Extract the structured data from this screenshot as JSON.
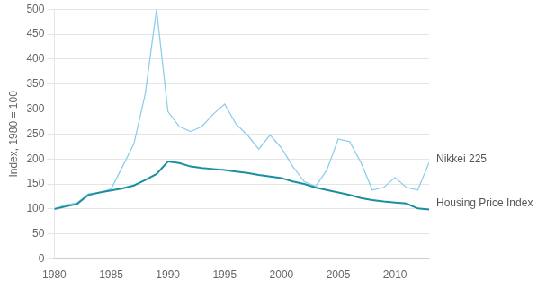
{
  "chart_data": {
    "type": "line",
    "y_label": "Index, 1980 = 100",
    "x": [
      1980,
      1981,
      1982,
      1983,
      1984,
      1985,
      1986,
      1987,
      1988,
      1989,
      1990,
      1991,
      1992,
      1993,
      1994,
      1995,
      1996,
      1997,
      1998,
      1999,
      2000,
      2001,
      2002,
      2003,
      2004,
      2005,
      2006,
      2007,
      2008,
      2009,
      2010,
      2011,
      2012,
      2013
    ],
    "series": [
      {
        "name": "Nikkei 225",
        "color": "#8dcfea",
        "values": [
          100,
          108,
          112,
          130,
          133,
          140,
          185,
          230,
          330,
          500,
          295,
          265,
          255,
          265,
          290,
          310,
          270,
          248,
          220,
          248,
          222,
          185,
          155,
          145,
          178,
          240,
          235,
          193,
          138,
          143,
          163,
          143,
          138,
          193
        ]
      },
      {
        "name": "Housing Price Index",
        "color": "#1a8f9e",
        "values": [
          100,
          105,
          110,
          128,
          133,
          137,
          141,
          147,
          158,
          170,
          195,
          192,
          185,
          182,
          180,
          178,
          175,
          172,
          168,
          165,
          162,
          155,
          150,
          143,
          138,
          133,
          128,
          122,
          118,
          115,
          113,
          111,
          101,
          99
        ]
      }
    ],
    "annotations": [
      {
        "text": "Nikkei 225",
        "y": 200
      },
      {
        "text": "Housing Price Index",
        "y": 112
      }
    ],
    "xlim": [
      1980,
      2013
    ],
    "xticks": [
      1980,
      1985,
      1990,
      1995,
      2000,
      2005,
      2010
    ],
    "ylim": [
      0,
      500
    ],
    "yticks": [
      0,
      50,
      100,
      150,
      200,
      250,
      300,
      350,
      400,
      450,
      500
    ],
    "grid": true
  }
}
